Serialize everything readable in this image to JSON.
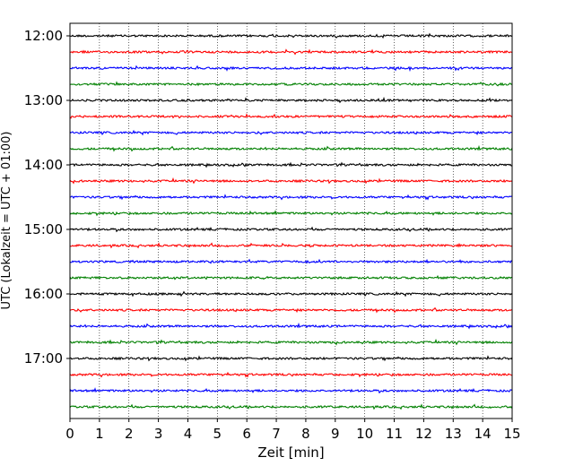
{
  "chart_data": {
    "type": "line",
    "title": "",
    "xlabel": "Zeit  [min]",
    "ylabel": "UTC (Lokalzeit = UTC + 01:00)",
    "xlim": [
      0,
      15
    ],
    "x_ticks": [
      0,
      1,
      2,
      3,
      4,
      5,
      6,
      7,
      8,
      9,
      10,
      11,
      12,
      13,
      14,
      15
    ],
    "x_grid": "dotted vertical lines at each minute",
    "y_ticks": [
      {
        "row": 0,
        "label": "12:00"
      },
      {
        "row": 4,
        "label": "13:00"
      },
      {
        "row": 8,
        "label": "14:00"
      },
      {
        "row": 12,
        "label": "15:00"
      },
      {
        "row": 16,
        "label": "16:00"
      },
      {
        "row": 20,
        "label": "17:00"
      }
    ],
    "trace_interval_min": 15,
    "trace_colors": [
      "#000000",
      "#ff0000",
      "#0000ff",
      "#008000"
    ],
    "traces": [
      {
        "start": "12:00",
        "color": "#000000"
      },
      {
        "start": "12:15",
        "color": "#ff0000"
      },
      {
        "start": "12:30",
        "color": "#0000ff"
      },
      {
        "start": "12:45",
        "color": "#008000"
      },
      {
        "start": "13:00",
        "color": "#000000"
      },
      {
        "start": "13:15",
        "color": "#ff0000"
      },
      {
        "start": "13:30",
        "color": "#0000ff"
      },
      {
        "start": "13:45",
        "color": "#008000"
      },
      {
        "start": "14:00",
        "color": "#000000"
      },
      {
        "start": "14:15",
        "color": "#ff0000"
      },
      {
        "start": "14:30",
        "color": "#0000ff"
      },
      {
        "start": "14:45",
        "color": "#008000"
      },
      {
        "start": "15:00",
        "color": "#000000"
      },
      {
        "start": "15:15",
        "color": "#ff0000"
      },
      {
        "start": "15:30",
        "color": "#0000ff"
      },
      {
        "start": "15:45",
        "color": "#008000"
      },
      {
        "start": "16:00",
        "color": "#000000"
      },
      {
        "start": "16:15",
        "color": "#ff0000"
      },
      {
        "start": "16:30",
        "color": "#0000ff"
      },
      {
        "start": "16:45",
        "color": "#008000"
      },
      {
        "start": "17:00",
        "color": "#000000"
      },
      {
        "start": "17:15",
        "color": "#ff0000"
      },
      {
        "start": "17:30",
        "color": "#0000ff"
      },
      {
        "start": "17:45",
        "color": "#008000"
      }
    ]
  }
}
